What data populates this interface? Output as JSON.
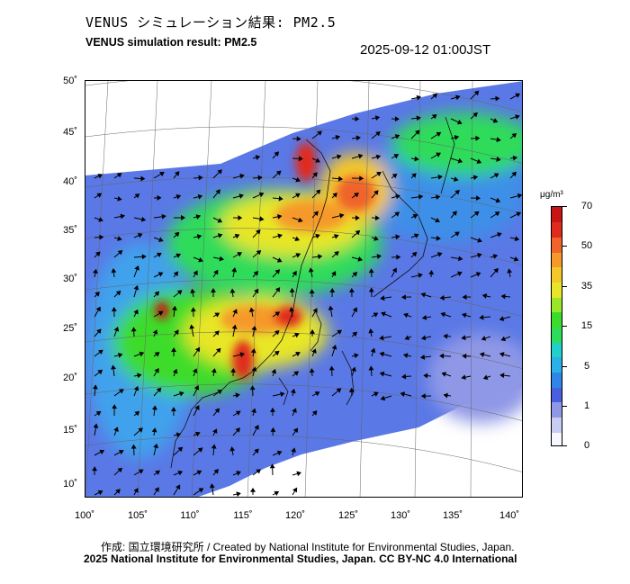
{
  "header": {
    "title_ja": "VENUS シミュレーション結果: PM2.5",
    "title_en": "VENUS simulation result: PM2.5",
    "timestamp": "2025-09-12 01:00JST"
  },
  "map": {
    "lat_labels": [
      "50˚",
      "45˚",
      "40˚",
      "35˚",
      "30˚",
      "25˚",
      "20˚",
      "15˚",
      "10˚"
    ],
    "lon_labels": [
      "100˚",
      "105˚",
      "110˚",
      "115˚",
      "120˚",
      "125˚",
      "130˚",
      "135˚",
      "140˚"
    ],
    "field": "PM2.5 concentration with surface wind vectors"
  },
  "colorbar": {
    "unit": "μg/m³",
    "labels": [
      "70",
      "50",
      "35",
      "15",
      "5",
      "1",
      "0"
    ],
    "colors": [
      "#f7f7ff",
      "#c8ccf2",
      "#8f98e6",
      "#4a5fe0",
      "#2f86e8",
      "#2bb0e8",
      "#21d0c8",
      "#2ddc5a",
      "#3cdc2a",
      "#9ae628",
      "#e8e628",
      "#f5c82a",
      "#f59a2a",
      "#f0642a",
      "#e02a1e",
      "#c81414"
    ]
  },
  "footer": {
    "credit": "作成: 国立環境研究所 / Created by National Institute for Environmental Studies, Japan.",
    "license": "2025 National Institute for Environmental Studies, Japan. CC BY-NC 4.0 International"
  }
}
